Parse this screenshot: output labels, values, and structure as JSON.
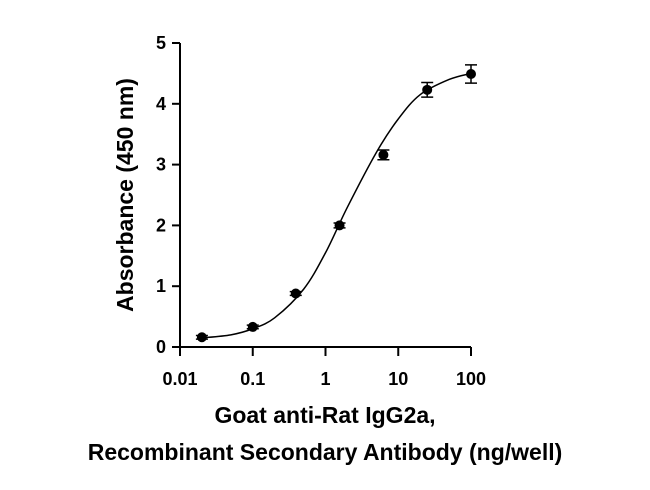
{
  "chart_data": {
    "type": "scatter",
    "y_label": "Absorbance (450 nm)",
    "x_label": [
      "Goat anti-Rat IgG2a,",
      "Recombinant Secondary Antibody (ng/well)"
    ],
    "x": [
      0.02,
      0.1,
      0.39,
      1.56,
      6.25,
      25,
      100
    ],
    "values": [
      0.16,
      0.33,
      0.88,
      2.0,
      3.16,
      4.23,
      4.49
    ],
    "errors": [
      0.03,
      0.03,
      0.03,
      0.04,
      0.08,
      0.12,
      0.15
    ],
    "fit": {
      "x": [
        0.02,
        0.05,
        0.1,
        0.2,
        0.5,
        1,
        2,
        5,
        10,
        20,
        50,
        100
      ],
      "values": [
        0.15,
        0.2,
        0.3,
        0.48,
        0.95,
        1.55,
        2.3,
        3.2,
        3.75,
        4.15,
        4.4,
        4.5
      ]
    },
    "color": "#000000",
    "xlog": true,
    "xlim": [
      0.01,
      100
    ],
    "xticks": [
      0.01,
      0.1,
      1,
      10,
      100
    ],
    "ylim": [
      0,
      5
    ],
    "yticks": [
      0,
      1,
      2,
      3,
      4,
      5
    ]
  }
}
